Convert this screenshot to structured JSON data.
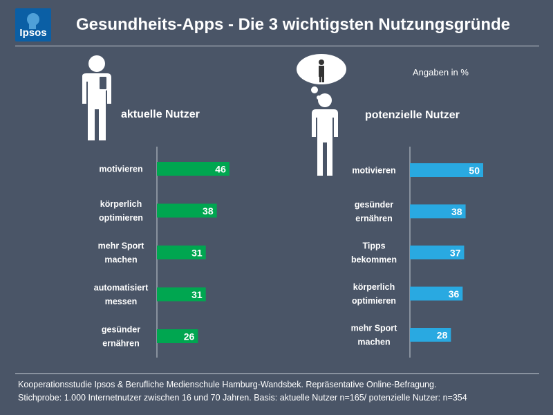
{
  "brand": {
    "logo_text": "Ipsos"
  },
  "title": "Gesundheits-Apps - Die 3 wichtigsten Nutzungsgründe",
  "unit_note": "Angaben in %",
  "colors": {
    "background": "#4a5567",
    "current": "#00a650",
    "potential": "#29a9e1",
    "logo": "#0b5fa5"
  },
  "chart_data": [
    {
      "type": "bar",
      "orientation": "horizontal",
      "title": "aktuelle Nutzer",
      "categories": [
        [
          "motivieren"
        ],
        [
          "körperlich",
          "optimieren"
        ],
        [
          "mehr Sport",
          "machen"
        ],
        [
          "automatisiert",
          "messen"
        ],
        [
          "gesünder",
          "ernähren"
        ]
      ],
      "values": [
        46,
        38,
        31,
        31,
        26
      ],
      "xlim": [
        0,
        100
      ]
    },
    {
      "type": "bar",
      "orientation": "horizontal",
      "title": "potenzielle Nutzer",
      "categories": [
        [
          "motivieren"
        ],
        [
          "gesünder",
          "ernähren"
        ],
        [
          "Tipps",
          "bekommen"
        ],
        [
          "körperlich",
          "optimieren"
        ],
        [
          "mehr Sport",
          "machen"
        ]
      ],
      "values": [
        50,
        38,
        37,
        36,
        28
      ],
      "xlim": [
        0,
        100
      ]
    }
  ],
  "footer": {
    "line1": "Kooperationsstudie Ipsos & Berufliche Medienschule Hamburg-Wandsbek. Repräsentative Online-Befragung.",
    "line2": "Stichprobe: 1.000 Internetnutzer zwischen 16 und 70 Jahren. Basis: aktuelle Nutzer n=165/ potenzielle Nutzer: n=354"
  }
}
